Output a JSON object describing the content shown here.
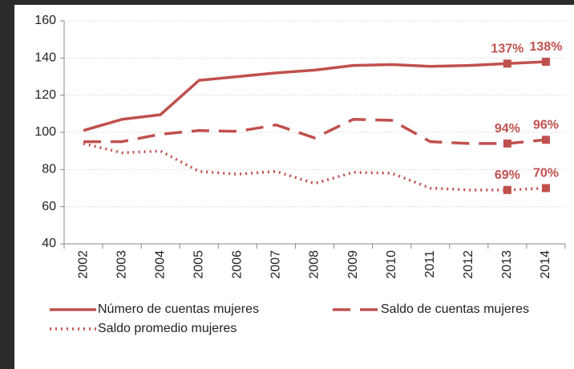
{
  "chart_data": {
    "type": "line",
    "categories": [
      "2002",
      "2003",
      "2004",
      "2005",
      "2006",
      "2007",
      "2008",
      "2009",
      "2010",
      "2011",
      "2012",
      "2013",
      "2014"
    ],
    "series": [
      {
        "name": "Número de cuentas mujeres",
        "color": "#c0504d",
        "style": "solid",
        "values": [
          101,
          107,
          109.5,
          128,
          130,
          132,
          133.5,
          136,
          136.5,
          135.5,
          136,
          137,
          138
        ],
        "value_labels": [
          null,
          null,
          null,
          null,
          null,
          null,
          null,
          null,
          null,
          null,
          null,
          "137%",
          "138%"
        ]
      },
      {
        "name": "Saldo de cuentas mujeres",
        "color": "#c0504d",
        "style": "dashed",
        "values": [
          95,
          95,
          99,
          101,
          100.5,
          104,
          97,
          107,
          106.5,
          95,
          94,
          94,
          96
        ],
        "value_labels": [
          null,
          null,
          null,
          null,
          null,
          null,
          null,
          null,
          null,
          null,
          null,
          "94%",
          "96%"
        ]
      },
      {
        "name": "Saldo promedio mujeres",
        "color": "#c0504d",
        "style": "dotted",
        "values": [
          94,
          89,
          90,
          79,
          77.5,
          79,
          72.5,
          78.5,
          78,
          70,
          69,
          69,
          70
        ],
        "value_labels": [
          null,
          null,
          null,
          null,
          null,
          null,
          null,
          null,
          null,
          null,
          null,
          "69%",
          "70%"
        ]
      }
    ],
    "ylim": [
      40,
      160
    ],
    "yticks": [
      40,
      60,
      80,
      100,
      120,
      140,
      160
    ],
    "grid": true
  }
}
